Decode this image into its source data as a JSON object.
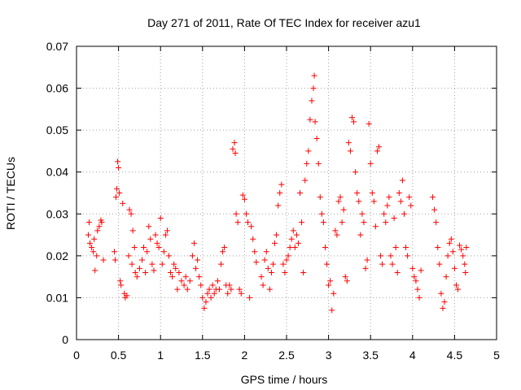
{
  "chart_data": {
    "type": "scatter",
    "title": "Day 271 of 2011, Rate Of TEC Index for receiver azu1",
    "xlabel": "GPS time / hours",
    "ylabel": "ROTI / TECUs",
    "xlim": [
      0,
      5
    ],
    "ylim": [
      0,
      0.07
    ],
    "xticks": [
      0,
      0.5,
      1,
      1.5,
      2,
      2.5,
      3,
      3.5,
      4,
      4.5,
      5
    ],
    "xtick_labels": [
      "0",
      "0.5",
      "1",
      "1.5",
      "2",
      "2.5",
      "3",
      "3.5",
      "4",
      "4.5",
      "5"
    ],
    "yticks": [
      0,
      0.01,
      0.02,
      0.03,
      0.04,
      0.05,
      0.06,
      0.07
    ],
    "ytick_labels": [
      "0",
      "0.01",
      "0.02",
      "0.03",
      "0.04",
      "0.05",
      "0.06",
      "0.07"
    ],
    "grid": true,
    "marker": "+",
    "color": "#ff0000",
    "series": [
      {
        "name": "azu1",
        "points": [
          [
            0.14,
            0.025
          ],
          [
            0.15,
            0.028
          ],
          [
            0.16,
            0.023
          ],
          [
            0.18,
            0.022
          ],
          [
            0.2,
            0.021
          ],
          [
            0.21,
            0.024
          ],
          [
            0.22,
            0.0165
          ],
          [
            0.24,
            0.02
          ],
          [
            0.25,
            0.026
          ],
          [
            0.27,
            0.027
          ],
          [
            0.29,
            0.0285
          ],
          [
            0.3,
            0.028
          ],
          [
            0.32,
            0.019
          ],
          [
            0.45,
            0.021
          ],
          [
            0.46,
            0.019
          ],
          [
            0.47,
            0.034
          ],
          [
            0.48,
            0.036
          ],
          [
            0.49,
            0.0425
          ],
          [
            0.5,
            0.041
          ],
          [
            0.51,
            0.035
          ],
          [
            0.52,
            0.014
          ],
          [
            0.53,
            0.013
          ],
          [
            0.55,
            0.0325
          ],
          [
            0.57,
            0.011
          ],
          [
            0.58,
            0.01
          ],
          [
            0.6,
            0.0105
          ],
          [
            0.62,
            0.02
          ],
          [
            0.63,
            0.031
          ],
          [
            0.65,
            0.03
          ],
          [
            0.66,
            0.018
          ],
          [
            0.67,
            0.026
          ],
          [
            0.69,
            0.022
          ],
          [
            0.7,
            0.016
          ],
          [
            0.72,
            0.015
          ],
          [
            0.75,
            0.017
          ],
          [
            0.78,
            0.019
          ],
          [
            0.8,
            0.022
          ],
          [
            0.82,
            0.016
          ],
          [
            0.84,
            0.021
          ],
          [
            0.86,
            0.027
          ],
          [
            0.88,
            0.024
          ],
          [
            0.9,
            0.018
          ],
          [
            0.92,
            0.0165
          ],
          [
            0.94,
            0.025
          ],
          [
            0.96,
            0.023
          ],
          [
            0.98,
            0.022
          ],
          [
            1.0,
            0.029
          ],
          [
            1.02,
            0.018
          ],
          [
            1.04,
            0.021
          ],
          [
            1.06,
            0.025
          ],
          [
            1.08,
            0.026
          ],
          [
            1.1,
            0.02
          ],
          [
            1.12,
            0.016
          ],
          [
            1.14,
            0.015
          ],
          [
            1.16,
            0.018
          ],
          [
            1.18,
            0.017
          ],
          [
            1.2,
            0.012
          ],
          [
            1.22,
            0.016
          ],
          [
            1.25,
            0.014
          ],
          [
            1.28,
            0.013
          ],
          [
            1.3,
            0.015
          ],
          [
            1.32,
            0.012
          ],
          [
            1.35,
            0.014
          ],
          [
            1.38,
            0.02
          ],
          [
            1.4,
            0.023
          ],
          [
            1.42,
            0.017
          ],
          [
            1.44,
            0.019
          ],
          [
            1.46,
            0.015
          ],
          [
            1.48,
            0.013
          ],
          [
            1.5,
            0.01
          ],
          [
            1.52,
            0.0075
          ],
          [
            1.54,
            0.009
          ],
          [
            1.56,
            0.011
          ],
          [
            1.58,
            0.012
          ],
          [
            1.6,
            0.01
          ],
          [
            1.62,
            0.013
          ],
          [
            1.64,
            0.011
          ],
          [
            1.66,
            0.012
          ],
          [
            1.68,
            0.014
          ],
          [
            1.7,
            0.012
          ],
          [
            1.72,
            0.018
          ],
          [
            1.74,
            0.021
          ],
          [
            1.76,
            0.022
          ],
          [
            1.78,
            0.013
          ],
          [
            1.8,
            0.011
          ],
          [
            1.82,
            0.013
          ],
          [
            1.84,
            0.012
          ],
          [
            1.86,
            0.0455
          ],
          [
            1.88,
            0.047
          ],
          [
            1.89,
            0.0445
          ],
          [
            1.9,
            0.03
          ],
          [
            1.92,
            0.028
          ],
          [
            1.94,
            0.012
          ],
          [
            1.96,
            0.011
          ],
          [
            1.98,
            0.0345
          ],
          [
            2.0,
            0.0335
          ],
          [
            2.02,
            0.03
          ],
          [
            2.04,
            0.028
          ],
          [
            2.06,
            0.01
          ],
          [
            2.08,
            0.027
          ],
          [
            2.1,
            0.024
          ],
          [
            2.12,
            0.021
          ],
          [
            2.14,
            0.0185
          ],
          [
            2.2,
            0.015
          ],
          [
            2.22,
            0.013
          ],
          [
            2.24,
            0.019
          ],
          [
            2.26,
            0.021
          ],
          [
            2.28,
            0.017
          ],
          [
            2.3,
            0.012
          ],
          [
            2.32,
            0.016
          ],
          [
            2.34,
            0.018
          ],
          [
            2.36,
            0.023
          ],
          [
            2.38,
            0.025
          ],
          [
            2.4,
            0.032
          ],
          [
            2.42,
            0.035
          ],
          [
            2.44,
            0.037
          ],
          [
            2.46,
            0.018
          ],
          [
            2.48,
            0.016
          ],
          [
            2.5,
            0.019
          ],
          [
            2.52,
            0.02
          ],
          [
            2.54,
            0.022
          ],
          [
            2.56,
            0.024
          ],
          [
            2.58,
            0.026
          ],
          [
            2.6,
            0.022
          ],
          [
            2.62,
            0.025
          ],
          [
            2.64,
            0.023
          ],
          [
            2.66,
            0.035
          ],
          [
            2.68,
            0.028
          ],
          [
            2.7,
            0.016
          ],
          [
            2.72,
            0.038
          ],
          [
            2.74,
            0.042
          ],
          [
            2.76,
            0.045
          ],
          [
            2.78,
            0.0525
          ],
          [
            2.8,
            0.057
          ],
          [
            2.82,
            0.06
          ],
          [
            2.83,
            0.063
          ],
          [
            2.84,
            0.052
          ],
          [
            2.86,
            0.048
          ],
          [
            2.88,
            0.042
          ],
          [
            2.9,
            0.034
          ],
          [
            2.92,
            0.03
          ],
          [
            2.94,
            0.028
          ],
          [
            2.96,
            0.022
          ],
          [
            2.98,
            0.018
          ],
          [
            3.0,
            0.013
          ],
          [
            3.02,
            0.014
          ],
          [
            3.04,
            0.007
          ],
          [
            3.06,
            0.011
          ],
          [
            3.08,
            0.026
          ],
          [
            3.1,
            0.025
          ],
          [
            3.12,
            0.033
          ],
          [
            3.14,
            0.034
          ],
          [
            3.16,
            0.028
          ],
          [
            3.18,
            0.031
          ],
          [
            3.2,
            0.015
          ],
          [
            3.22,
            0.014
          ],
          [
            3.24,
            0.047
          ],
          [
            3.26,
            0.045
          ],
          [
            3.28,
            0.053
          ],
          [
            3.3,
            0.052
          ],
          [
            3.32,
            0.04
          ],
          [
            3.34,
            0.035
          ],
          [
            3.36,
            0.033
          ],
          [
            3.38,
            0.025
          ],
          [
            3.4,
            0.03
          ],
          [
            3.42,
            0.028
          ],
          [
            3.44,
            0.017
          ],
          [
            3.46,
            0.019
          ],
          [
            3.48,
            0.0515
          ],
          [
            3.5,
            0.042
          ],
          [
            3.52,
            0.035
          ],
          [
            3.54,
            0.033
          ],
          [
            3.56,
            0.027
          ],
          [
            3.58,
            0.045
          ],
          [
            3.6,
            0.046
          ],
          [
            3.62,
            0.02
          ],
          [
            3.64,
            0.018
          ],
          [
            3.66,
            0.03
          ],
          [
            3.68,
            0.028
          ],
          [
            3.7,
            0.032
          ],
          [
            3.72,
            0.034
          ],
          [
            3.74,
            0.02
          ],
          [
            3.76,
            0.018
          ],
          [
            3.78,
            0.029
          ],
          [
            3.8,
            0.022
          ],
          [
            3.82,
            0.016
          ],
          [
            3.84,
            0.035
          ],
          [
            3.86,
            0.033
          ],
          [
            3.88,
            0.038
          ],
          [
            3.9,
            0.03
          ],
          [
            3.92,
            0.022
          ],
          [
            3.94,
            0.02
          ],
          [
            3.96,
            0.034
          ],
          [
            3.98,
            0.032
          ],
          [
            4.0,
            0.017
          ],
          [
            4.02,
            0.015
          ],
          [
            4.04,
            0.014
          ],
          [
            4.06,
            0.012
          ],
          [
            4.08,
            0.01
          ],
          [
            4.1,
            0.0165
          ],
          [
            4.24,
            0.034
          ],
          [
            4.26,
            0.031
          ],
          [
            4.28,
            0.028
          ],
          [
            4.3,
            0.022
          ],
          [
            4.32,
            0.018
          ],
          [
            4.34,
            0.011
          ],
          [
            4.36,
            0.0075
          ],
          [
            4.38,
            0.009
          ],
          [
            4.4,
            0.015
          ],
          [
            4.42,
            0.02
          ],
          [
            4.44,
            0.023
          ],
          [
            4.46,
            0.024
          ],
          [
            4.48,
            0.021
          ],
          [
            4.5,
            0.017
          ],
          [
            4.52,
            0.013
          ],
          [
            4.54,
            0.012
          ],
          [
            4.56,
            0.0225
          ],
          [
            4.58,
            0.0215
          ],
          [
            4.6,
            0.02
          ],
          [
            4.62,
            0.018
          ],
          [
            4.63,
            0.016
          ],
          [
            4.64,
            0.022
          ]
        ]
      }
    ]
  }
}
